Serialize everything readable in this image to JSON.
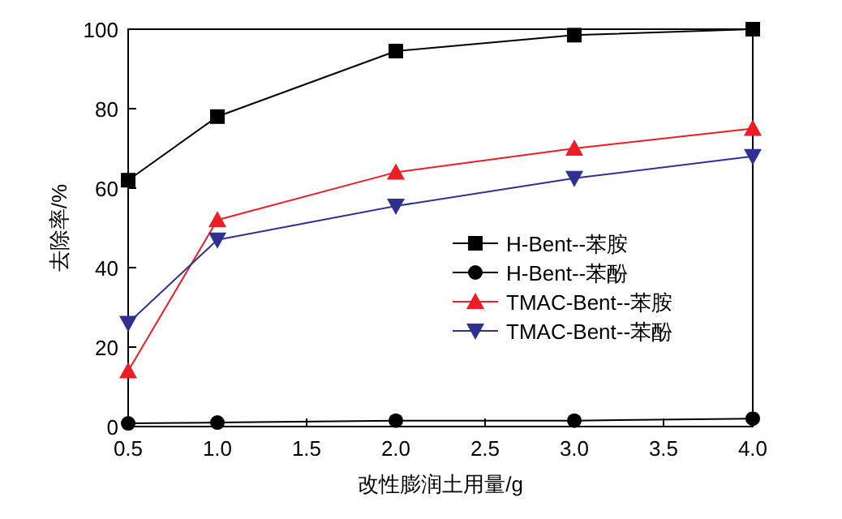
{
  "chart_data": {
    "type": "line",
    "xlabel": "改性膨润土用量/g",
    "ylabel": "去除率/%",
    "x": [
      0.5,
      1.0,
      2.0,
      3.0,
      4.0
    ],
    "xlim": [
      0.5,
      4.0
    ],
    "xticks": [
      {
        "value": 0.5,
        "label": "0.5"
      },
      {
        "value": 1,
        "label": "1.0"
      },
      {
        "value": 1.5,
        "label": "1.5"
      },
      {
        "value": 2,
        "label": "2.0"
      },
      {
        "value": 2.5,
        "label": "2.5"
      },
      {
        "value": 3,
        "label": "3.0"
      },
      {
        "value": 3.5,
        "label": "3.5"
      },
      {
        "value": 4,
        "label": "4.0"
      }
    ],
    "ylim": [
      0,
      100
    ],
    "yticks": [
      0,
      20,
      40,
      60,
      80,
      100
    ],
    "grid": false,
    "legend": "right",
    "line_style": "solid",
    "series": [
      {
        "name": "H-Bent--苯胺",
        "color": "#000000",
        "marker": "square",
        "values": [
          62,
          78,
          94.5,
          98.5,
          100
        ]
      },
      {
        "name": "H-Bent--苯酚",
        "color": "#000000",
        "marker": "circle",
        "values": [
          0.8,
          1,
          1.5,
          1.5,
          2
        ]
      },
      {
        "name": "TMAC-Bent--苯胺",
        "color": "#ee1c25",
        "marker": "triangle",
        "values": [
          14,
          52,
          64,
          70,
          75
        ]
      },
      {
        "name": "TMAC-Bent--苯酚",
        "color": "#2e3192",
        "marker": "triangle-down",
        "values": [
          26,
          47,
          55.5,
          62.5,
          68
        ]
      }
    ]
  }
}
